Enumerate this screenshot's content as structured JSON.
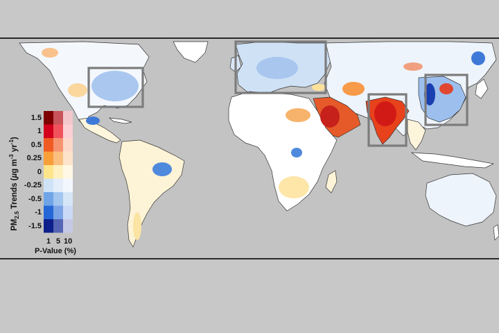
{
  "legend": {
    "title_prefix": "PM",
    "title_sub": "2.5",
    "title_main": " Trends (",
    "title_mu": "µ",
    "title_units": "g m",
    "title_sup1": "-3",
    "title_yr": " yr",
    "title_sup2": "-1",
    "title_close": ")",
    "ticks": [
      "1.5",
      "1",
      "0.5",
      "0.25",
      "0",
      "-0.25",
      "-0.5",
      "-1",
      "-1.5"
    ],
    "p_values": [
      "1",
      "5",
      "10"
    ],
    "p_title": "P-Value (%)",
    "colors": [
      [
        "#7f0000",
        "#c7545a",
        "#f3c6cc"
      ],
      [
        "#d2001c",
        "#f1535d",
        "#fbcfd3"
      ],
      [
        "#ef5b22",
        "#f79470",
        "#fcd8c9"
      ],
      [
        "#f89f39",
        "#fbbf80",
        "#fde3ca"
      ],
      [
        "#ffe58a",
        "#fff0c0",
        "#fff8e4"
      ],
      [
        "#cfe3f6",
        "#e3eefa",
        "#f2f7fd"
      ],
      [
        "#6fa5e6",
        "#a3c6ef",
        "#d6e6f8"
      ],
      [
        "#2567d6",
        "#7ba4e6",
        "#cad9f5"
      ],
      [
        "#0c1f8a",
        "#5564b3",
        "#c5c8e5"
      ]
    ]
  },
  "map": {
    "colors": {
      "background": "#c3c3c3",
      "land_default": "#ffffff",
      "box_stroke": "#7c7c7c"
    },
    "regions_highlighted": [
      "Eastern United States",
      "Europe",
      "India",
      "East China"
    ]
  }
}
